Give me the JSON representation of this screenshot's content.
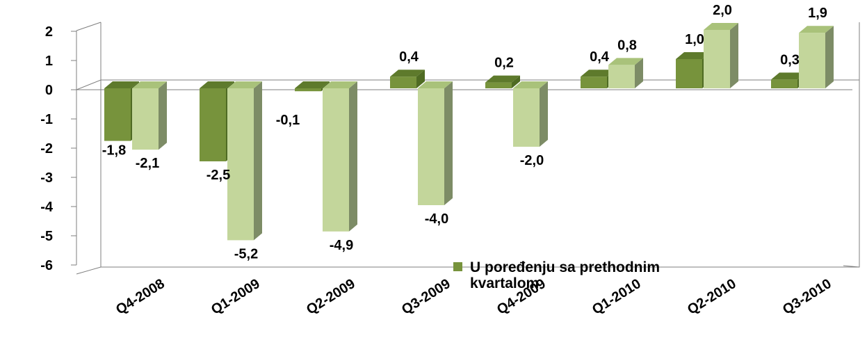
{
  "chart_data": {
    "type": "bar",
    "style": "3d-clustered-column",
    "categories": [
      "Q4-2008",
      "Q1-2009",
      "Q2-2009",
      "Q3-2009",
      "Q4-2009",
      "Q1-2010",
      "Q2-2010",
      "Q3-2010"
    ],
    "category_labels": [
      "Q4-2008",
      "Q1-2009",
      "Q2-2009",
      "Q3-2009",
      "Q4-2009",
      "Q1-2010",
      "Q2-2010",
      "Q3-2010"
    ],
    "series": [
      {
        "name": "U poređenju sa prethodnim kvartalom",
        "color": "#77933C",
        "values": [
          -1.8,
          -2.5,
          -0.1,
          0.4,
          0.2,
          0.4,
          1.0,
          0.3
        ],
        "labels": [
          "-1,8",
          "-2,5",
          "-0,1",
          "0,4",
          "0,2",
          "0,4",
          "1,0",
          "0,3"
        ]
      },
      {
        "name": "",
        "color": "#C3D69B",
        "values": [
          -2.1,
          -5.2,
          -4.9,
          -4.0,
          -2.0,
          0.8,
          2.0,
          1.9
        ],
        "labels": [
          "-2,1",
          "-5,2",
          "-4,9",
          "-4,0",
          "-2,0",
          "0,8",
          "2,0",
          "1,9"
        ]
      }
    ],
    "ylim": [
      -6,
      2
    ],
    "yticks": [
      "2",
      "1",
      "0",
      "-1",
      "-2",
      "-3",
      "-4",
      "-5",
      "-6"
    ],
    "ytick_values": [
      2,
      1,
      0,
      -1,
      -2,
      -3,
      -4,
      -5,
      -6
    ],
    "legend": {
      "placement": "bottom-center",
      "entries": [
        "U poređenju sa prethodnim",
        "kvartalom"
      ]
    },
    "grid": false,
    "colors": {
      "series1_front": "#77933C",
      "series1_top": "#5E7A2C",
      "series1_side": "#4F6B23",
      "series2_front": "#C3D69B",
      "series2_top": "#A9C27A",
      "series2_side": "#7D8C66",
      "axis": "#7f7f7f"
    }
  }
}
